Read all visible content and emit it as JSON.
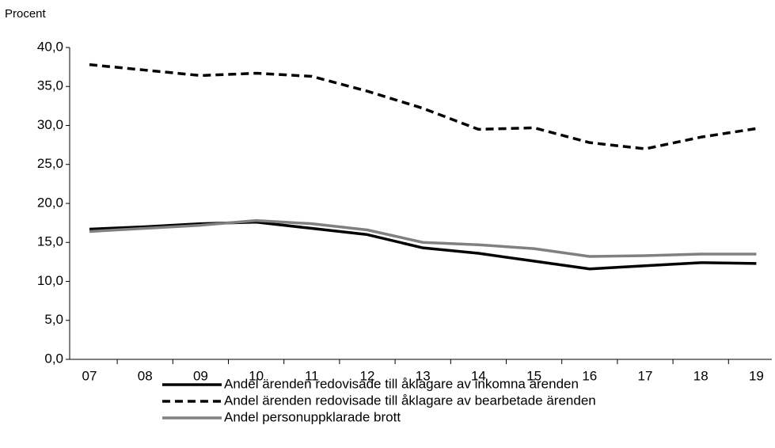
{
  "chart_data": {
    "type": "line",
    "y_label": "Procent",
    "categories": [
      "07",
      "08",
      "09",
      "10",
      "11",
      "12",
      "13",
      "14",
      "15",
      "16",
      "17",
      "18",
      "19"
    ],
    "series": [
      {
        "name": "Andel ärenden redovisade till åklagare av inkomna ärenden",
        "color": "#000000",
        "dash": false,
        "values": [
          16.7,
          17.0,
          17.4,
          17.6,
          16.8,
          16.0,
          14.3,
          13.6,
          12.6,
          11.6,
          12.0,
          12.4,
          12.3
        ]
      },
      {
        "name": "Andel ärenden redovisade till åklagare av bearbetade ärenden",
        "color": "#000000",
        "dash": true,
        "values": [
          37.8,
          37.1,
          36.4,
          36.7,
          36.3,
          34.4,
          32.2,
          29.5,
          29.7,
          27.8,
          27.0,
          28.5,
          29.6
        ]
      },
      {
        "name": "Andel personuppklarade brott",
        "color": "#808080",
        "dash": false,
        "values": [
          16.4,
          16.8,
          17.2,
          17.8,
          17.4,
          16.6,
          15.0,
          14.7,
          14.2,
          13.2,
          13.3,
          13.5,
          13.5
        ]
      }
    ],
    "ylim": [
      0,
      40
    ],
    "yticks": [
      {
        "value": 0,
        "label": "0,0"
      },
      {
        "value": 5,
        "label": "5,0"
      },
      {
        "value": 10,
        "label": "10,0"
      },
      {
        "value": 15,
        "label": "15,0"
      },
      {
        "value": 20,
        "label": "20,0"
      },
      {
        "value": 25,
        "label": "25,0"
      },
      {
        "value": 30,
        "label": "30,0"
      },
      {
        "value": 35,
        "label": "35,0"
      },
      {
        "value": 40,
        "label": "40,0"
      }
    ],
    "grid": false
  }
}
